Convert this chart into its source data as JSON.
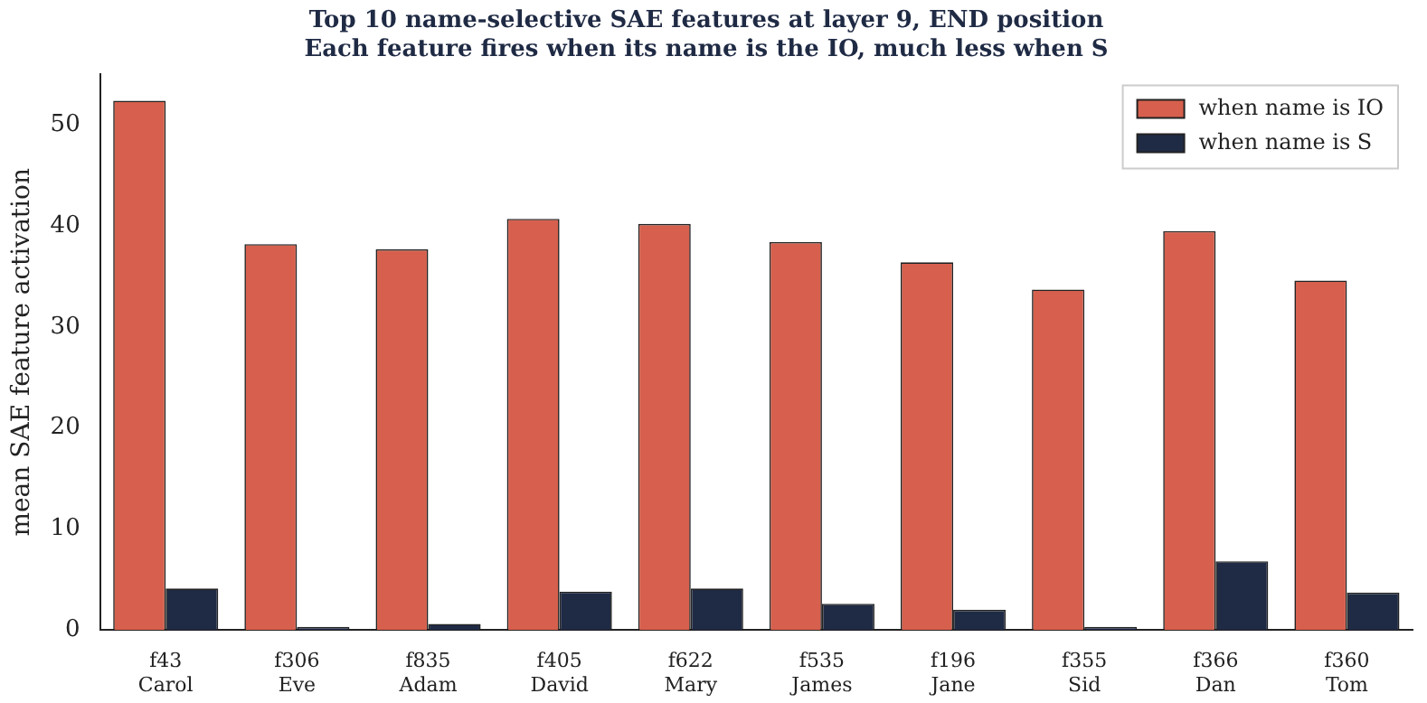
{
  "chart_data": {
    "type": "bar",
    "title": [
      "Top 10 name-selective SAE features at layer 9, END position",
      "Each feature fires when its name is the IO, much less when S"
    ],
    "ylabel": "mean SAE feature activation",
    "categories": [
      "f43\nCarol",
      "f306\nEve",
      "f835\nAdam",
      "f405\nDavid",
      "f622\nMary",
      "f535\nJames",
      "f196\nJane",
      "f355\nSid",
      "f366\nDan",
      "f360\nTom"
    ],
    "series": [
      {
        "name": "when name is IO",
        "color": "#d6604d",
        "values": [
          52.4,
          38.2,
          37.7,
          40.7,
          40.2,
          38.4,
          36.4,
          33.7,
          39.5,
          34.6
        ]
      },
      {
        "name": "when name is S",
        "color": "#1f2a44",
        "values": [
          4.1,
          0.3,
          0.6,
          3.8,
          4.1,
          2.6,
          2.0,
          0.3,
          6.8,
          3.7
        ]
      }
    ],
    "ylim": [
      0,
      55
    ],
    "yticks": [
      0,
      10,
      20,
      30,
      40,
      50
    ],
    "grid": false,
    "legend": "top right"
  }
}
